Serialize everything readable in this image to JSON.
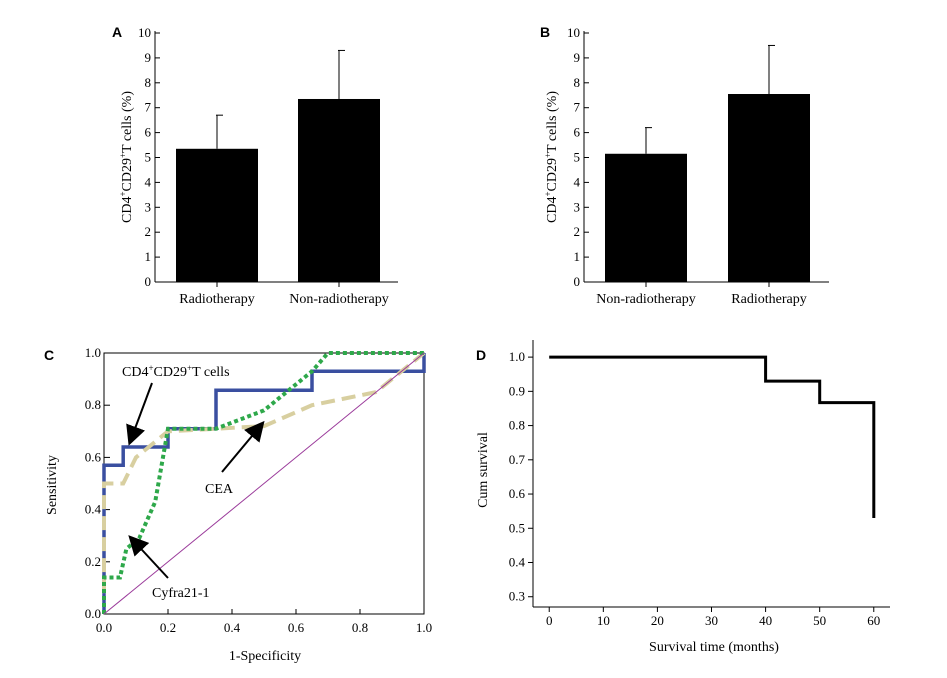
{
  "chart_data": [
    {
      "panel": "A",
      "type": "bar",
      "ylabel_pre": "CD4",
      "ylabel_sup1": "+",
      "ylabel_mid": "CD29",
      "ylabel_sup2": "+",
      "ylabel_post": "T cells (%)",
      "ylim": [
        0,
        10
      ],
      "yticks": [
        "0",
        "1",
        "2",
        "3",
        "4",
        "5",
        "6",
        "7",
        "8",
        "9",
        "10"
      ],
      "categories": [
        "Radiotherapy",
        "Non-radiotherapy"
      ],
      "values": [
        5.35,
        7.35
      ],
      "errors": [
        1.35,
        1.95
      ]
    },
    {
      "panel": "B",
      "type": "bar",
      "ylabel_pre": "CD4",
      "ylabel_sup1": "+",
      "ylabel_mid": "CD29",
      "ylabel_sup2": "+",
      "ylabel_post": "T cells (%)",
      "ylim": [
        0,
        10
      ],
      "yticks": [
        "0",
        "1",
        "2",
        "3",
        "4",
        "5",
        "6",
        "7",
        "8",
        "9",
        "10"
      ],
      "categories": [
        "Non-radiotherapy",
        "Radiotherapy"
      ],
      "values": [
        5.15,
        7.55
      ],
      "errors": [
        1.05,
        1.95
      ]
    },
    {
      "panel": "C",
      "type": "line",
      "xlabel": "1-Specificity",
      "ylabel": "Sensitivity",
      "xlim": [
        0,
        1
      ],
      "ylim": [
        0,
        1
      ],
      "xticks": [
        "0.0",
        "0.2",
        "0.4",
        "0.6",
        "0.8",
        "1.0"
      ],
      "yticks": [
        "0.0",
        "0.2",
        "0.4",
        "0.6",
        "0.8",
        "1.0"
      ],
      "series": [
        {
          "name": "CD4+CD29+T cells",
          "color": "#3a4fa0",
          "points": [
            [
              0,
              0
            ],
            [
              0,
              0.57
            ],
            [
              0.06,
              0.57
            ],
            [
              0.06,
              0.64
            ],
            [
              0.2,
              0.64
            ],
            [
              0.2,
              0.71
            ],
            [
              0.35,
              0.71
            ],
            [
              0.35,
              0.857
            ],
            [
              0.65,
              0.857
            ],
            [
              0.65,
              0.93
            ],
            [
              1,
              0.93
            ],
            [
              1,
              1
            ]
          ]
        },
        {
          "name": "CEA",
          "color": "#d8cfa0",
          "points": [
            [
              0,
              0.08
            ],
            [
              0,
              0.5
            ],
            [
              0.06,
              0.5
            ],
            [
              0.1,
              0.6
            ],
            [
              0.2,
              0.7
            ],
            [
              0.5,
              0.72
            ],
            [
              0.65,
              0.8
            ],
            [
              0.85,
              0.85
            ],
            [
              1,
              1
            ]
          ]
        },
        {
          "name": "Cyfra21-1",
          "color": "#2ea84a",
          "points": [
            [
              0,
              0
            ],
            [
              0,
              0.14
            ],
            [
              0.05,
              0.14
            ],
            [
              0.07,
              0.25
            ],
            [
              0.11,
              0.29
            ],
            [
              0.16,
              0.43
            ],
            [
              0.2,
              0.71
            ],
            [
              0.35,
              0.71
            ],
            [
              0.5,
              0.78
            ],
            [
              0.65,
              0.93
            ],
            [
              0.7,
              1
            ],
            [
              1,
              1
            ]
          ]
        },
        {
          "name": "reference",
          "color": "#9a3a9a",
          "points": [
            [
              0,
              0
            ],
            [
              1,
              1
            ]
          ]
        }
      ],
      "annotations": {
        "cd4_pre": "CD4",
        "cd4_sup1": "+",
        "cd4_mid": "CD29",
        "cd4_sup2": "+",
        "cd4_post": "T cells",
        "cea": "CEA",
        "cyfra": "Cyfra21-1"
      }
    },
    {
      "panel": "D",
      "type": "line",
      "xlabel": "Survival time (months)",
      "ylabel": "Cum survival",
      "xlim": [
        -3,
        63
      ],
      "ylim": [
        0.27,
        1.05
      ],
      "xticks": [
        "0",
        "10",
        "20",
        "30",
        "40",
        "50",
        "60"
      ],
      "yticks": [
        "0.3",
        "0.4",
        "0.5",
        "0.6",
        "0.7",
        "0.8",
        "0.9",
        "1.0"
      ],
      "series": [
        {
          "name": "survival",
          "color": "#000000",
          "points": [
            [
              0,
              1.0
            ],
            [
              40,
              1.0
            ],
            [
              40,
              0.93
            ],
            [
              50,
              0.93
            ],
            [
              50,
              0.867
            ],
            [
              60,
              0.867
            ],
            [
              60,
              0.53
            ]
          ]
        }
      ]
    }
  ]
}
